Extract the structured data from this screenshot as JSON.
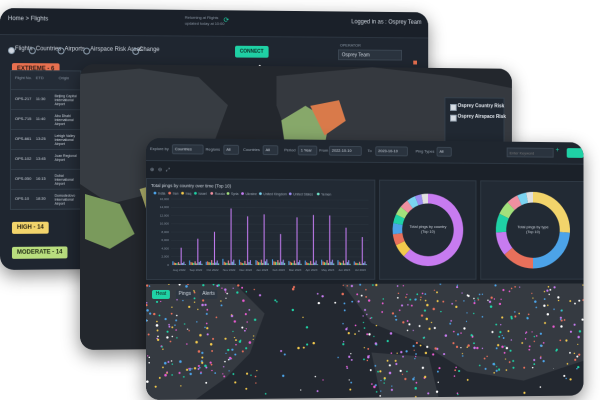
{
  "card1": {
    "breadcrumb": "Home > Flights",
    "center_line1": "Returning at Flights",
    "center_line2": "updated today at 10:00",
    "logged_in": "Logged in as : Osprey Team",
    "tabs": [
      "Flights",
      "Countries",
      "Airports",
      "Airspace Risk Areas",
      "Change"
    ],
    "action_button": "CONNECT",
    "filter_label": "OPERATOR",
    "filter_value": "Osprey Team",
    "risk_badges": {
      "extreme": "EXTREME - 6",
      "high": "HIGH - 14",
      "moderate": "MODERATE - 14"
    },
    "table_headers": [
      "Flight No.",
      "ETD",
      "Origin"
    ],
    "table_rows": [
      {
        "flight": "OPS-217",
        "time": "11:30",
        "route": "Beijing Capital International Airport"
      },
      {
        "flight": "OPS-715",
        "time": "11:40",
        "route": "Abu Dhabi International Airport"
      },
      {
        "flight": "OPS-661",
        "time": "13:25",
        "route": "Lehigh Valley International Airport"
      },
      {
        "flight": "OPS-102",
        "time": "13:45",
        "route": "Juan Regional Airport"
      },
      {
        "flight": "OPS-050",
        "time": "16:15",
        "route": "Dubai International Airport"
      },
      {
        "flight": "OPS-10",
        "time": "18:30",
        "route": "Domodedovo International Airport"
      }
    ],
    "colors": {
      "extreme": "#e8704f",
      "high": "#f2d46b",
      "moderate": "#b9de7e",
      "accent": "#1fd1a5"
    }
  },
  "card2": {
    "legend_title_country": "Osprey Country Risk",
    "legend_title_airspace": "Osprey Airspace Risk",
    "legend_items": [
      "Above FL300",
      "FL100 to FL300",
      "Up to FL100"
    ]
  },
  "card3": {
    "filters": [
      {
        "label": "Explore by",
        "value": "Countries"
      },
      {
        "label": "Regions",
        "value": "All"
      },
      {
        "label": "Countries",
        "value": "All"
      },
      {
        "label": "Period",
        "value": "1 Year"
      },
      {
        "label": "From",
        "value": "2022-10-10"
      },
      {
        "label": "To",
        "value": "2023-10-10"
      },
      {
        "label": "Ping Types",
        "value": "All"
      }
    ],
    "search_placeholder": "Enter Keyword",
    "map_tabs": [
      "Heat",
      "Pings",
      "Alerts"
    ],
    "donut1_label": "Total pings by country (Top 10)",
    "donut2_label": "Total pings by type (Top 10)",
    "chart_data": {
      "type": "bar",
      "title": "Total pings by country over time (Top 10)",
      "categories": [
        "Aug 2022",
        "Sep 2022",
        "Oct 2022",
        "Nov 2022",
        "Dec 2022",
        "Jan 2023",
        "Feb 2023",
        "Mar 2023",
        "Apr 2023",
        "May 2023",
        "Jun 2023",
        "Jul 2023"
      ],
      "ylim": [
        0,
        16000
      ],
      "series": [
        {
          "name": "India",
          "color": "#4ca3e8",
          "values": [
            900,
            1100,
            800,
            1500,
            1300,
            1200,
            1400,
            1000,
            1100,
            1300,
            1200,
            900
          ]
        },
        {
          "name": "Iran",
          "color": "#e8705b",
          "values": [
            600,
            700,
            900,
            800,
            700,
            1000,
            900,
            800,
            700,
            900,
            800,
            600
          ]
        },
        {
          "name": "Iraq",
          "color": "#f2c94c",
          "values": [
            500,
            600,
            700,
            600,
            500,
            700,
            800,
            600,
            500,
            700,
            600,
            500
          ]
        },
        {
          "name": "Israel",
          "color": "#1fd1a5",
          "values": [
            400,
            500,
            600,
            500,
            400,
            600,
            700,
            500,
            400,
            600,
            500,
            400
          ]
        },
        {
          "name": "Russia",
          "color": "#f08fa0",
          "values": [
            700,
            900,
            1200,
            1100,
            1000,
            1300,
            1200,
            1100,
            1000,
            1200,
            1100,
            800
          ]
        },
        {
          "name": "Syria",
          "color": "#a3e07c",
          "values": [
            300,
            400,
            500,
            400,
            300,
            500,
            600,
            400,
            300,
            500,
            400,
            300
          ]
        },
        {
          "name": "Ukraine",
          "color": "#c27bf0",
          "values": [
            4200,
            6400,
            8100,
            13800,
            11900,
            12400,
            7600,
            11700,
            12300,
            12200,
            9200,
            6900
          ]
        },
        {
          "name": "United Kingdom",
          "color": "#7bd3f0",
          "values": [
            500,
            700,
            600,
            800,
            700,
            900,
            800,
            700,
            600,
            800,
            700,
            500
          ]
        },
        {
          "name": "United States",
          "color": "#9b8cf2",
          "values": [
            800,
            1000,
            1100,
            1300,
            1200,
            1400,
            1300,
            1200,
            1100,
            1300,
            1200,
            900
          ]
        },
        {
          "name": "Yemen",
          "color": "#6fe0c8",
          "values": [
            200,
            300,
            400,
            300,
            200,
            400,
            500,
            300,
            200,
            400,
            300,
            200
          ]
        }
      ]
    },
    "donut1": {
      "segments": [
        {
          "v": 62,
          "c": "#c77bf0"
        },
        {
          "v": 6,
          "c": "#f2c94c"
        },
        {
          "v": 5,
          "c": "#e8705b"
        },
        {
          "v": 5,
          "c": "#4ca3e8"
        },
        {
          "v": 4,
          "c": "#1fd1a5"
        },
        {
          "v": 4,
          "c": "#a3e07c"
        },
        {
          "v": 4,
          "c": "#f08fa0"
        },
        {
          "v": 4,
          "c": "#7bd3f0"
        },
        {
          "v": 3,
          "c": "#9b8cf2"
        },
        {
          "v": 3,
          "c": "#e0e0e0"
        }
      ]
    },
    "donut2": {
      "segments": [
        {
          "v": 26,
          "c": "#f2d46b"
        },
        {
          "v": 24,
          "c": "#4ca3e8"
        },
        {
          "v": 14,
          "c": "#e8705b"
        },
        {
          "v": 10,
          "c": "#c77bf0"
        },
        {
          "v": 8,
          "c": "#1fd1a5"
        },
        {
          "v": 6,
          "c": "#a3e07c"
        },
        {
          "v": 5,
          "c": "#f08fa0"
        },
        {
          "v": 4,
          "c": "#7bd3f0"
        },
        {
          "v": 3,
          "c": "#e0e0e0"
        }
      ]
    }
  }
}
